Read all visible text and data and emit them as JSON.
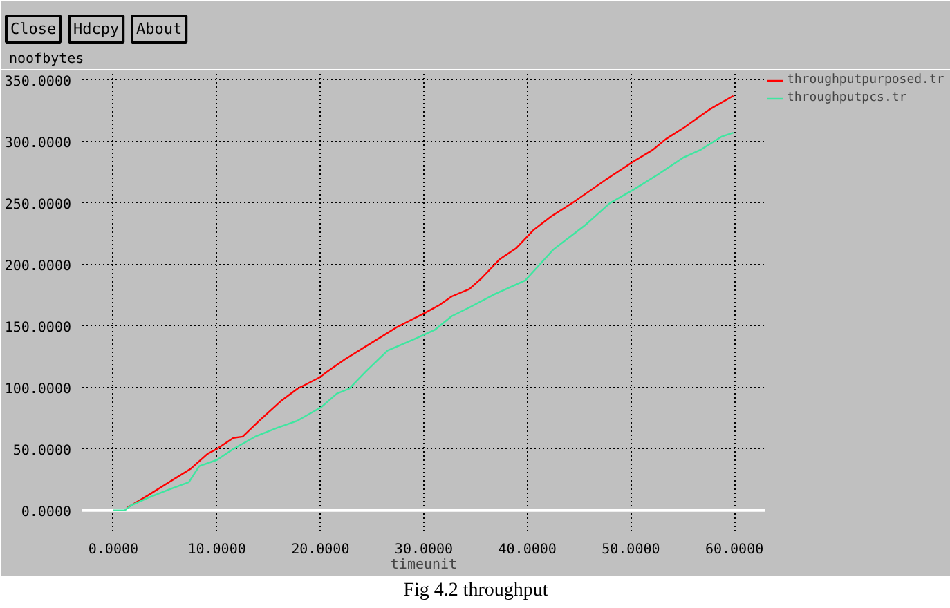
{
  "chart_data": {
    "type": "line",
    "xlabel": "timeunit",
    "ylabel": "noofbytes",
    "annotations": [
      "Close",
      "Hdcpy",
      "About",
      "Fig 4.2 throughput"
    ],
    "xlim": [
      -3,
      63
    ],
    "ylim": [
      -17,
      356
    ],
    "xticks": [
      {
        "value": 0,
        "label": "0.0000"
      },
      {
        "value": 10,
        "label": "10.0000"
      },
      {
        "value": 20,
        "label": "20.0000"
      },
      {
        "value": 30,
        "label": "30.0000"
      },
      {
        "value": 40,
        "label": "40.0000"
      },
      {
        "value": 50,
        "label": "50.0000"
      },
      {
        "value": 60,
        "label": "60.0000"
      }
    ],
    "yticks": [
      {
        "value": 0,
        "label": "0.0000"
      },
      {
        "value": 50,
        "label": "50.0000"
      },
      {
        "value": 100,
        "label": "100.0000"
      },
      {
        "value": 150,
        "label": "150.0000"
      },
      {
        "value": 200,
        "label": "200.0000"
      },
      {
        "value": 250,
        "label": "250.0000"
      },
      {
        "value": 300,
        "label": "300.0000"
      },
      {
        "value": 350,
        "label": "350.0000"
      }
    ],
    "grid": true,
    "legend": "top right",
    "ref_lines": [
      {
        "axis": "y",
        "value": 0,
        "color": "#ffffff"
      }
    ],
    "series": [
      {
        "name": "throughputpurposed.tr",
        "color": "#ff0000",
        "x": [
          1.3,
          3.3,
          5.4,
          7.5,
          9.1,
          10.0,
          11.6,
          12.5,
          14.1,
          16.2,
          17.8,
          19.9,
          20.7,
          22.4,
          24.9,
          27.4,
          30.2,
          31.5,
          32.7,
          34.4,
          35.6,
          37.3,
          38.9,
          40.6,
          42.3,
          44.7,
          47.6,
          50.3,
          52.1,
          53.4,
          55.1,
          57.6,
          59.9
        ],
        "values": [
          2,
          12,
          23,
          34,
          46,
          50,
          59,
          60,
          73,
          89,
          99,
          108,
          113,
          123,
          136,
          149,
          161,
          167,
          174,
          180,
          189,
          204,
          213,
          228,
          239,
          252,
          269,
          284,
          293,
          302,
          311,
          326,
          337
        ]
      },
      {
        "name": "throughputpcs.tr",
        "color": "#3ee6a0",
        "x": [
          0,
          1.1,
          1.7,
          3.3,
          5.4,
          7.3,
          8.3,
          10.0,
          11.6,
          13.7,
          15.8,
          17.8,
          20.1,
          21.6,
          22.8,
          24.4,
          26.5,
          29.0,
          31.1,
          32.7,
          34.4,
          36.9,
          39.8,
          42.5,
          43.9,
          45.6,
          48.0,
          50.3,
          52.6,
          55.1,
          56.7,
          58.8,
          59.9
        ],
        "values": [
          0,
          0,
          4,
          10,
          17,
          23,
          36,
          41,
          50,
          60,
          67,
          73,
          84,
          95,
          99,
          113,
          130,
          139,
          147,
          158,
          165,
          176,
          187,
          212,
          221,
          232,
          250,
          261,
          273,
          287,
          293,
          304,
          307
        ]
      }
    ]
  }
}
